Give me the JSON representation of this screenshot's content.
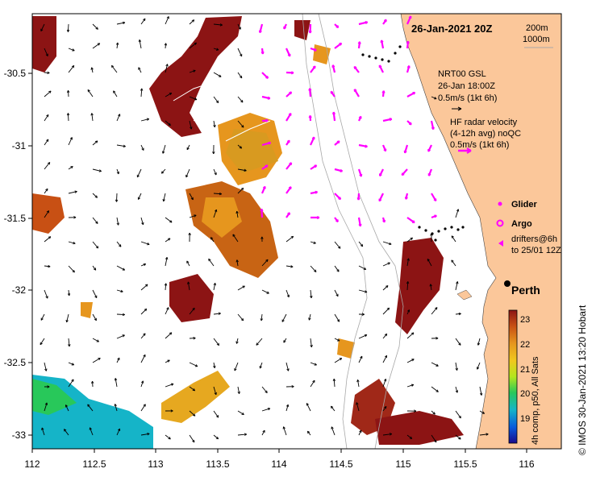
{
  "header": {
    "date_label": "26-Jan-2021 20Z",
    "isobath_labels": [
      "200m",
      "1000m"
    ]
  },
  "legend": {
    "nrt_title": "NRT00 GSL",
    "nrt_time": "26-Jan 18:00Z",
    "nrt_scale": "0.5m/s (1kt 6h)",
    "hf_title": "HF radar velocity",
    "hf_sub": "(4-12h avg) noQC",
    "hf_scale": "0.5m/s (1kt 6h)",
    "glider_label": "Glider",
    "argo_label": "Argo",
    "drifters_line1": "drifters@6h",
    "drifters_line2": "to 25/01 12Z",
    "city_label": "Perth"
  },
  "colorbar": {
    "label": "4h comp, p50, All Sats",
    "ticks": [
      "19",
      "20",
      "21",
      "22",
      "23"
    ],
    "colors": [
      "#1a0a8c",
      "#0a5adc",
      "#15b4c8",
      "#28c85a",
      "#b4e61e",
      "#f0c81e",
      "#e6961e",
      "#c85014",
      "#8c1414"
    ]
  },
  "credit": "© IMOS 30-Jan-2021 13:20 Hobart",
  "map": {
    "land_color": "#fbc79a",
    "axes": {
      "x_ticks": [
        "112",
        "112.5",
        "113",
        "113.5",
        "114",
        "114.5",
        "115",
        "115.5",
        "116"
      ],
      "y_ticks": [
        "-30.5",
        "-31",
        "-31.5",
        "-32",
        "-32.5",
        "-33"
      ]
    }
  }
}
